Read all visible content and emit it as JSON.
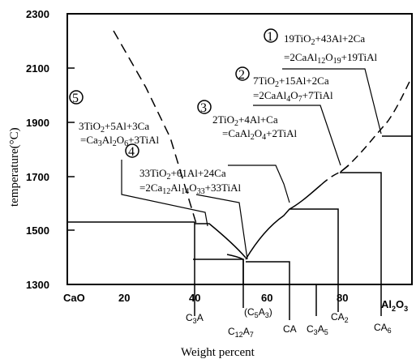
{
  "y_axis": {
    "label": "temperature(°C)",
    "ticks": [
      "2300",
      "2100",
      "1900",
      "1700",
      "1500",
      "1300"
    ]
  },
  "x_axis": {
    "label": "Weight percent",
    "ticks": [
      "20",
      "40",
      "60",
      "80"
    ],
    "end_left": "CaO",
    "end_right": "Al2O3"
  },
  "phases": {
    "C3A": "C3A",
    "C12A7": "C12A7",
    "C5A3": "(C5A3)",
    "CA": "CA",
    "C3A5": "C3A5",
    "CA2": "CA2",
    "CA6": "CA6"
  },
  "reactions": [
    {
      "number": "1",
      "line1": "19TiO2+43Al+2Ca",
      "line2": "=2CaAl12O19+19TiAl"
    },
    {
      "number": "2",
      "line1": "7TiO2+15Al+2Ca",
      "line2": "=2CaAl4O7+7TiAl"
    },
    {
      "number": "3",
      "line1": "2TiO2+4Al+Ca",
      "line2": "=CaAl2O4+2TiAl"
    },
    {
      "number": "4",
      "line1": "33TiO2+61Al+24Ca",
      "line2": "=2Ca12Al14O33+33TiAl"
    },
    {
      "number": "5",
      "line1": "3TiO2+5Al+3Ca",
      "line2": "=Ca3Al2O6+3TiAl"
    }
  ]
}
